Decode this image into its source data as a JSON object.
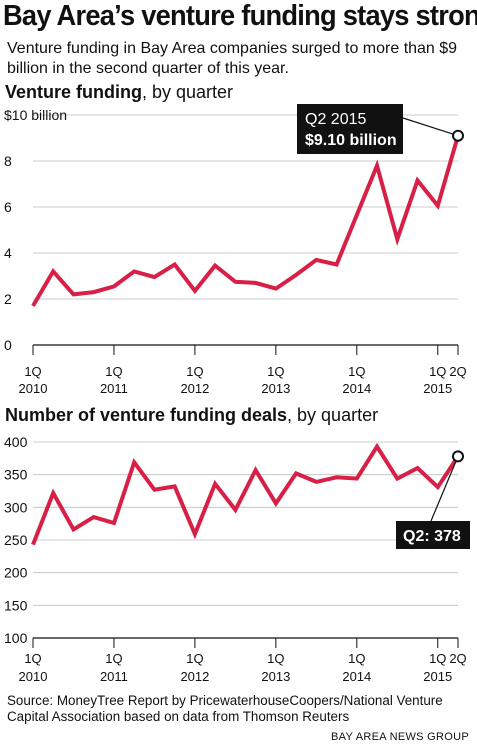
{
  "headline": "Bay Area’s venture funding stays strong",
  "subtitle": "Venture funding in Bay Area companies surged to more than $9 billion in the second quarter of this year.",
  "colors": {
    "line": "#d81f45",
    "text": "#111111",
    "grid": "#bdbdbd",
    "callout_bg": "#111111",
    "callout_text": "#ffffff"
  },
  "chart_data": [
    {
      "type": "line",
      "title_bold": "Venture funding",
      "title_rest": ", by quarter",
      "ylim": [
        0,
        10
      ],
      "yticks": [
        0,
        2,
        4,
        6,
        8,
        10
      ],
      "ytick_labels": [
        "0",
        "2",
        "4",
        "6",
        "8",
        "$10 billion"
      ],
      "xtick_labels": [
        {
          "i": 0,
          "q": "1Q",
          "year": "2010"
        },
        {
          "i": 4,
          "q": "1Q",
          "year": "2011"
        },
        {
          "i": 8,
          "q": "1Q",
          "year": "2012"
        },
        {
          "i": 12,
          "q": "1Q",
          "year": "2013"
        },
        {
          "i": 16,
          "q": "1Q",
          "year": "2014"
        },
        {
          "i": 20,
          "q": "1Q",
          "year": "2015"
        },
        {
          "i": 21,
          "q": "2Q",
          "year": ""
        }
      ],
      "series": [
        {
          "values": [
            1.7,
            3.2,
            2.2,
            2.3,
            2.55,
            3.2,
            2.95,
            3.5,
            2.35,
            3.45,
            2.75,
            2.7,
            2.45,
            3.05,
            3.7,
            3.5,
            5.65,
            7.8,
            4.6,
            7.15,
            6.05,
            9.1
          ]
        }
      ],
      "callout": {
        "line1": "Q2 2015",
        "line2": "$9.10 billion"
      }
    },
    {
      "type": "line",
      "title_bold": "Number of venture funding deals",
      "title_rest": ", by quarter",
      "ylim": [
        100,
        400
      ],
      "yticks": [
        100,
        150,
        200,
        250,
        300,
        350,
        400
      ],
      "ytick_labels": [
        "100",
        "150",
        "200",
        "250",
        "300",
        "350",
        "400"
      ],
      "xtick_labels": [
        {
          "i": 0,
          "q": "1Q",
          "year": "2010"
        },
        {
          "i": 4,
          "q": "1Q",
          "year": "2011"
        },
        {
          "i": 8,
          "q": "1Q",
          "year": "2012"
        },
        {
          "i": 12,
          "q": "1Q",
          "year": "2013"
        },
        {
          "i": 16,
          "q": "1Q",
          "year": "2014"
        },
        {
          "i": 20,
          "q": "1Q",
          "year": "2015"
        },
        {
          "i": 21,
          "q": "2Q",
          "year": ""
        }
      ],
      "series": [
        {
          "values": [
            243,
            322,
            266,
            285,
            276,
            369,
            327,
            332,
            259,
            336,
            296,
            357,
            306,
            352,
            339,
            346,
            344,
            393,
            344,
            360,
            331,
            378
          ]
        }
      ],
      "callout": {
        "line1": "Q2: 378"
      }
    }
  ],
  "footer": {
    "source": "Source: MoneyTree Report by PricewaterhouseCoopers/National Venture Capital Association based on data from Thomson Reuters",
    "credit": "BAY AREA NEWS GROUP"
  }
}
